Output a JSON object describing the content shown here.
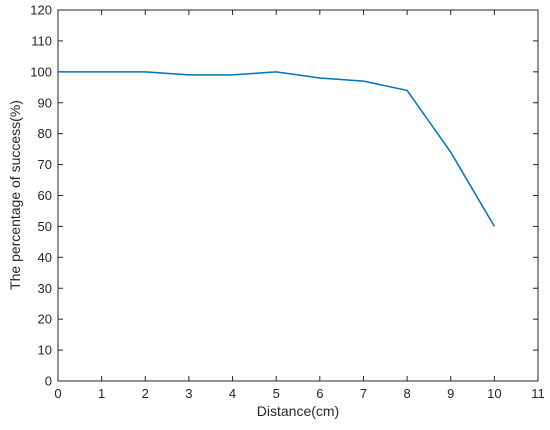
{
  "chart_data": {
    "type": "line",
    "x_label": "Distance(cm)",
    "y_label": "The percentage of success(%)",
    "x": [
      0,
      1,
      2,
      3,
      4,
      5,
      6,
      7,
      8,
      9,
      10
    ],
    "series": [
      {
        "color": "#0072bd",
        "values": [
          100,
          100,
          100,
          99,
          99,
          100,
          98,
          97,
          94,
          74,
          50
        ]
      }
    ],
    "xlim": [
      0,
      11
    ],
    "xticks": [
      0,
      1,
      2,
      3,
      4,
      5,
      6,
      7,
      8,
      9,
      10,
      11
    ],
    "ylim": [
      0,
      120
    ],
    "yticks": [
      0,
      10,
      20,
      30,
      40,
      50,
      60,
      70,
      80,
      90,
      100,
      110,
      120
    ],
    "grid": false
  }
}
